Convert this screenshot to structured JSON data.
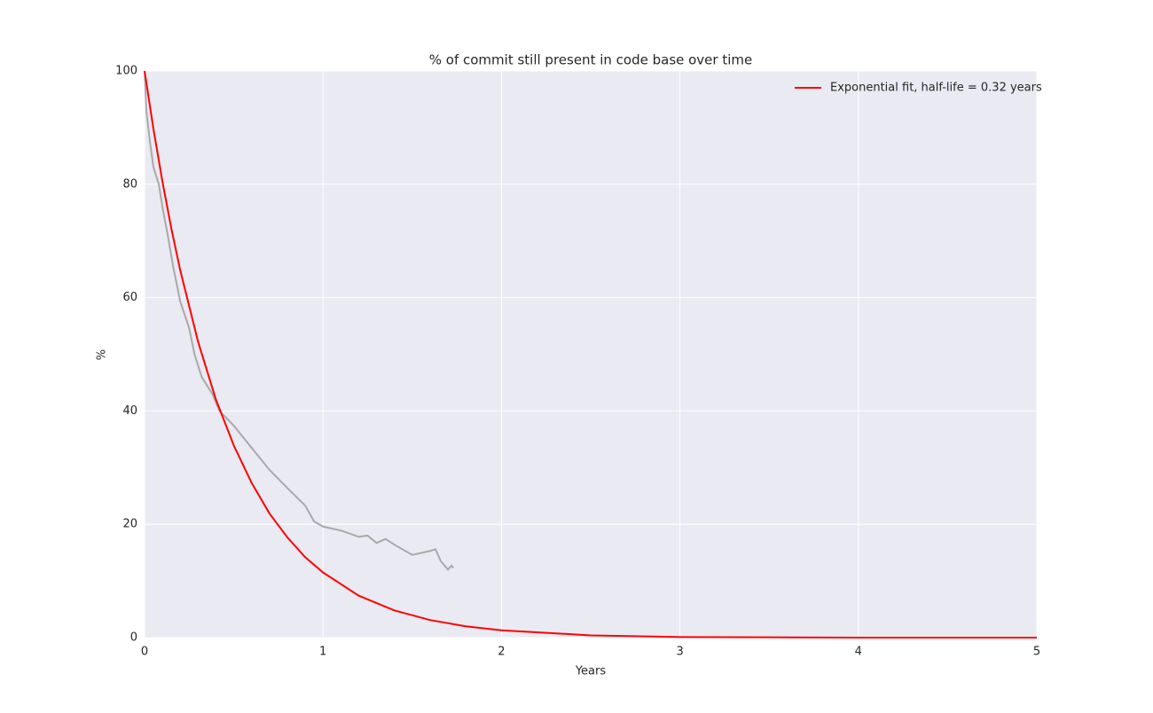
{
  "chart_data": {
    "type": "line",
    "title": "% of commit still present in code base over time",
    "xlabel": "Years",
    "ylabel": "%",
    "xlim": [
      0,
      5
    ],
    "ylim": [
      0,
      100
    ],
    "xticks": [
      0,
      1,
      2,
      3,
      4,
      5
    ],
    "yticks": [
      0,
      20,
      40,
      60,
      80,
      100
    ],
    "grid": true,
    "legend": "upper right",
    "series": [
      {
        "color": "#a9a9a9",
        "x": [
          0,
          0.01,
          0.03,
          0.05,
          0.08,
          0.1,
          0.13,
          0.16,
          0.2,
          0.25,
          0.28,
          0.32,
          0.38,
          0.42,
          0.5,
          0.6,
          0.7,
          0.8,
          0.9,
          0.95,
          1.0,
          1.1,
          1.2,
          1.25,
          1.3,
          1.35,
          1.4,
          1.5,
          1.6,
          1.63,
          1.66,
          1.7,
          1.72,
          1.73
        ],
        "values": [
          100,
          93,
          87.5,
          83,
          80,
          76,
          71,
          65.5,
          59.3,
          54.6,
          50,
          46,
          43,
          40,
          37.4,
          33.5,
          29.6,
          26.4,
          23.3,
          20.5,
          19.6,
          18.9,
          17.8,
          18.0,
          16.7,
          17.4,
          16.4,
          14.6,
          15.3,
          15.6,
          13.5,
          12,
          12.7,
          12.3
        ]
      },
      {
        "name": "Exponential fit, half-life = 0.32 years",
        "color": "#ff0000",
        "x": [
          0,
          0.05,
          0.1,
          0.15,
          0.2,
          0.3,
          0.4,
          0.5,
          0.6,
          0.7,
          0.8,
          0.9,
          1.0,
          1.2,
          1.4,
          1.6,
          1.8,
          2.0,
          2.5,
          3.0,
          3.5,
          4.0,
          5.0
        ],
        "values": [
          100,
          89.7,
          80.5,
          72.2,
          64.8,
          52.2,
          42.0,
          33.9,
          27.3,
          21.9,
          17.7,
          14.2,
          11.5,
          7.4,
          4.8,
          3.1,
          2.0,
          1.3,
          0.4,
          0.1,
          0.05,
          0.0,
          0.0
        ]
      }
    ]
  }
}
